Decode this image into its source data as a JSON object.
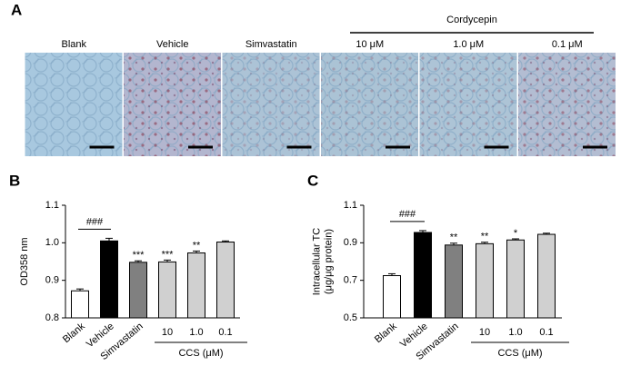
{
  "panel_a": {
    "label": "A",
    "group_label": "Cordycepin",
    "columns": [
      "Blank",
      "Vehicle",
      "Simvastatin",
      "10 μM",
      "1.0 μM",
      "0.1 μM"
    ]
  },
  "chart_data": [
    {
      "type": "bar",
      "panel_label": "B",
      "ylabel": [
        "OD358 nm"
      ],
      "categories": [
        "Blank",
        "Vehicle",
        "Simvastatin",
        "10",
        "1.0",
        "0.1"
      ],
      "values": [
        0.872,
        1.005,
        0.948,
        0.949,
        0.973,
        1.002
      ],
      "errors": [
        0.005,
        0.007,
        0.004,
        0.005,
        0.005,
        0.003
      ],
      "colors": [
        "#ffffff",
        "#000000",
        "#808080",
        "#d0d0d0",
        "#d0d0d0",
        "#d0d0d0"
      ],
      "annotations": [
        null,
        null,
        "***",
        "***",
        "**",
        null
      ],
      "comparison": "###",
      "group_label": "CCS (μM)",
      "ylim": [
        0.8,
        1.1
      ],
      "yticks": [
        0.8,
        0.9,
        {
          "value": 1,
          "label": "1.0"
        },
        1.1
      ]
    },
    {
      "type": "bar",
      "panel_label": "C",
      "ylabel": [
        "Intracellular TC",
        "(μg/μg protein)"
      ],
      "categories": [
        "Blank",
        "Vehicle",
        "Simvastatin",
        "10",
        "1.0",
        "0.1"
      ],
      "values": [
        0.725,
        0.955,
        0.888,
        0.895,
        0.915,
        0.945
      ],
      "errors": [
        0.01,
        0.01,
        0.01,
        0.008,
        0.006,
        0.006
      ],
      "colors": [
        "#ffffff",
        "#000000",
        "#808080",
        "#d0d0d0",
        "#d0d0d0",
        "#d0d0d0"
      ],
      "annotations": [
        null,
        null,
        "**",
        "**",
        "*",
        null
      ],
      "comparison": "###",
      "group_label": "CCS (μM)",
      "ylim": [
        0.5,
        1.1
      ],
      "yticks": [
        0.5,
        0.7,
        0.9,
        1.1
      ]
    }
  ]
}
